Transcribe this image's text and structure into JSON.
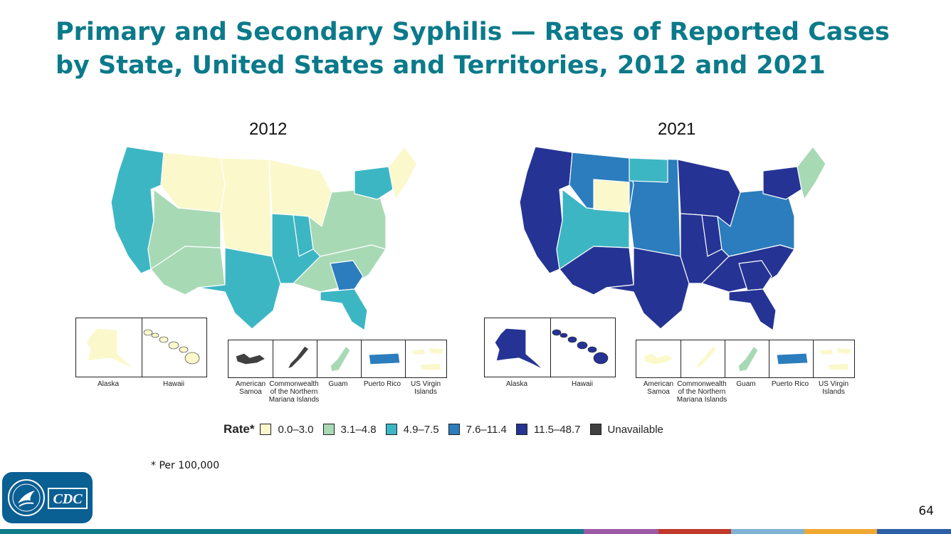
{
  "title": "Primary and Secondary Syphilis — Rates of Reported Cases by State, United States and Territories, 2012 and 2021",
  "maps": [
    {
      "year": "2012",
      "regions": {
        "west-coast": "c3",
        "mountain-north": "c1",
        "mountain-central": "c2",
        "southwest": "c2",
        "plains": "c1",
        "texas": "c3",
        "midwest": "c1",
        "illinois": "c3",
        "south-central": "c3",
        "southeast": "c2",
        "georgia": "c4",
        "florida": "c3",
        "mid-atlantic": "c2",
        "new-york": "c3",
        "new-england": "c1"
      },
      "insets": {
        "alaska": "c1",
        "hawaii": "c1",
        "american_samoa": "c6",
        "cnmi": "c6",
        "guam": "c2",
        "puerto_rico": "c4",
        "usvi": "c1"
      }
    },
    {
      "year": "2021",
      "regions": {
        "west-coast": "c5",
        "mountain-north": "c4",
        "mountain-central": "c3",
        "southwest": "c5",
        "plains": "c4",
        "texas": "c5",
        "midwest": "c5",
        "illinois": "c5",
        "south-central": "c5",
        "southeast": "c5",
        "georgia": "c5",
        "florida": "c5",
        "mid-atlantic": "c4",
        "new-york": "c5",
        "new-england": "c2",
        "wyoming": "c1",
        "north-dakota": "c3"
      },
      "insets": {
        "alaska": "c5",
        "hawaii": "c5",
        "american_samoa": "c1",
        "cnmi": "c1",
        "guam": "c2",
        "puerto_rico": "c4",
        "usvi": "c1"
      }
    }
  ],
  "inset_labels": {
    "alaska": "Alaska",
    "hawaii": "Hawaii",
    "american_samoa": "American Samoa",
    "cnmi": "Commonwealth of the Northern Mariana Islands",
    "guam": "Guam",
    "puerto_rico": "Puerto Rico",
    "usvi": "US Virgin Islands"
  },
  "legend": {
    "title": "Rate*",
    "items": [
      {
        "key": "c1",
        "label": "0.0–3.0",
        "color": "#fbf8cc"
      },
      {
        "key": "c2",
        "label": "3.1–4.8",
        "color": "#a8d9b5"
      },
      {
        "key": "c3",
        "label": "4.9–7.5",
        "color": "#3db6c4"
      },
      {
        "key": "c4",
        "label": "7.6–11.4",
        "color": "#2b7dbd"
      },
      {
        "key": "c5",
        "label": "11.5–48.7",
        "color": "#253494"
      },
      {
        "key": "c6",
        "label": "Unavailable",
        "color": "#404040"
      }
    ]
  },
  "footnote": "* Per 100,000",
  "page_number": "64",
  "logo": {
    "text": "CDC",
    "icon": "hhs-eagle-icon"
  },
  "bottom_bar_colors": [
    "#0f7d8c",
    "#9b59a6",
    "#c0392b",
    "#7fb3d5",
    "#f0a830",
    "#2d5fa8"
  ]
}
